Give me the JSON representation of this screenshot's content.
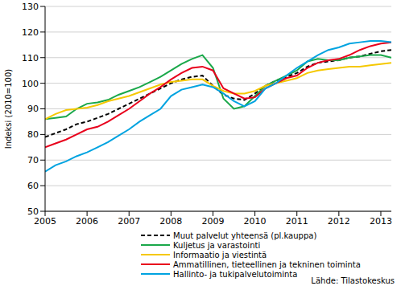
{
  "chart_data": {
    "type": "line",
    "y_label": "Indeksi (2010=100)",
    "source": "Lähde: Tilastokeskus",
    "x": [
      2005,
      2005.25,
      2005.5,
      2005.75,
      2006,
      2006.25,
      2006.5,
      2006.75,
      2007,
      2007.25,
      2007.5,
      2007.75,
      2008,
      2008.25,
      2008.5,
      2008.75,
      2009,
      2009.25,
      2009.5,
      2009.75,
      2010,
      2010.25,
      2010.5,
      2010.75,
      2011,
      2011.25,
      2011.5,
      2011.75,
      2012,
      2012.25,
      2012.5,
      2012.75,
      2013,
      2013.25
    ],
    "xlim": [
      2005,
      2013.25
    ],
    "xticks": [
      2005,
      2006,
      2007,
      2008,
      2009,
      2010,
      2011,
      2012,
      2013
    ],
    "ylim": [
      50,
      130
    ],
    "yticks": [
      50,
      60,
      70,
      80,
      90,
      100,
      110,
      120,
      130
    ],
    "grid": true,
    "series": [
      {
        "name": "Muut palvelut yhteensä (pl.kauppa)",
        "color": "#000000",
        "line_style": "dashed",
        "values": [
          79,
          80.5,
          82,
          84,
          85,
          86.5,
          88,
          90,
          92,
          94,
          96,
          98,
          100,
          101.5,
          102.5,
          103,
          99,
          95.5,
          94,
          93.5,
          96,
          99,
          101,
          102.5,
          104,
          106.5,
          108,
          108.5,
          109,
          110,
          110.5,
          111.5,
          112.5,
          113
        ]
      },
      {
        "name": "Kuljetus ja varastointi",
        "color": "#1aa84a",
        "line_style": "solid",
        "values": [
          86,
          86.5,
          87,
          90,
          92,
          92.5,
          93.5,
          95.5,
          97,
          98.5,
          100.5,
          102.5,
          105,
          107.5,
          109.5,
          111,
          106,
          94,
          90,
          91,
          95,
          99,
          101,
          103,
          105,
          108.5,
          109.5,
          109,
          109,
          110,
          110.5,
          111,
          111,
          110
        ]
      },
      {
        "name": "Informaatio ja viestintä",
        "color": "#f5c800",
        "line_style": "solid",
        "values": [
          86,
          88,
          89.5,
          90,
          90.5,
          91.5,
          93,
          94,
          95,
          96.5,
          98,
          99.5,
          100.5,
          101,
          101.5,
          101.5,
          99,
          97,
          96,
          96,
          97,
          99,
          100,
          101,
          102,
          104,
          105,
          105.5,
          106,
          106.5,
          106.5,
          107,
          107.5,
          108
        ]
      },
      {
        "name": "Ammatillinen, tieteellinen ja tekninen toiminta",
        "color": "#e8001c",
        "line_style": "solid",
        "values": [
          75,
          76.5,
          78,
          80,
          82,
          83,
          85,
          87.5,
          90,
          93,
          96,
          98.5,
          101.5,
          104,
          106,
          106.5,
          105,
          98,
          96,
          94,
          94.5,
          98,
          100,
          102,
          103,
          106,
          108,
          109,
          109.5,
          111,
          113,
          114.5,
          115.5,
          116
        ]
      },
      {
        "name": "Hallinto- ja tukipalvelutoiminta",
        "color": "#00a3e0",
        "line_style": "solid",
        "values": [
          65.5,
          68,
          69.5,
          71.5,
          73,
          75,
          77,
          79.5,
          82,
          85,
          87.5,
          90,
          95,
          97.5,
          98.5,
          99.5,
          98.5,
          96,
          93,
          91,
          93,
          98,
          100,
          103,
          106,
          108.5,
          111,
          113,
          114,
          115.5,
          116,
          116.5,
          116.5,
          116
        ]
      }
    ]
  }
}
